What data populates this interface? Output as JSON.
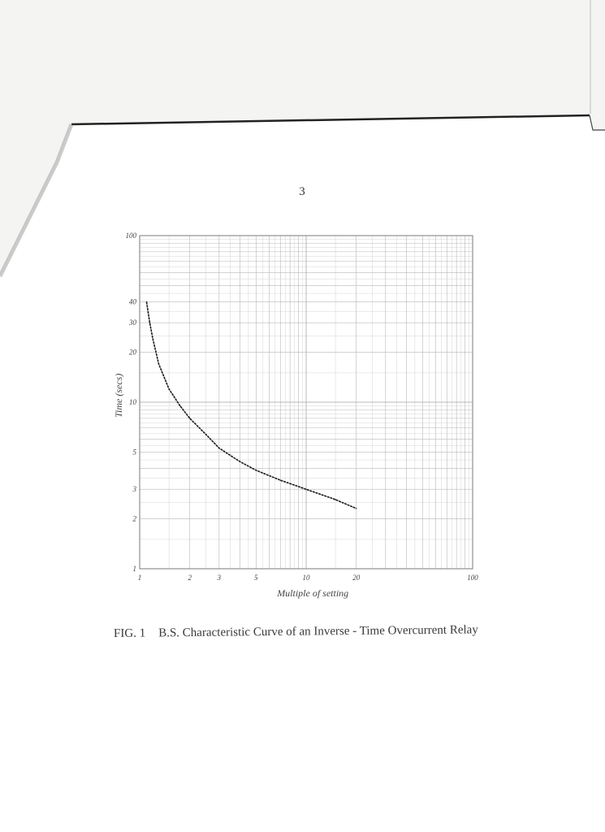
{
  "page": {
    "number": "3"
  },
  "caption": {
    "label": "FIG. 1",
    "text": "B.S. Characteristic Curve of an Inverse - Time Overcurrent Relay"
  },
  "colors": {
    "paper": "#ffffff",
    "grid": "#b8b8b8",
    "curve": "#1a1a1a",
    "text": "#444444"
  },
  "chart_data": {
    "type": "line",
    "xlabel": "Multiple of setting",
    "ylabel": "Time (secs)",
    "x_scale": "log",
    "y_scale": "log",
    "xlim": [
      1,
      100
    ],
    "ylim": [
      1,
      100
    ],
    "grid": true,
    "x_ticks": [
      {
        "value": 1,
        "label": "1"
      },
      {
        "value": 2,
        "label": "2"
      },
      {
        "value": 3,
        "label": "3"
      },
      {
        "value": 5,
        "label": "5"
      },
      {
        "value": 10,
        "label": "10"
      },
      {
        "value": 20,
        "label": "20"
      },
      {
        "value": 100,
        "label": "100"
      }
    ],
    "y_ticks": [
      {
        "value": 1,
        "label": "1"
      },
      {
        "value": 2,
        "label": "2"
      },
      {
        "value": 3,
        "label": "3"
      },
      {
        "value": 5,
        "label": "5"
      },
      {
        "value": 10,
        "label": "10"
      },
      {
        "value": 20,
        "label": "20"
      },
      {
        "value": 30,
        "label": "30"
      },
      {
        "value": 40,
        "label": "40"
      },
      {
        "value": 100,
        "label": "100"
      }
    ],
    "series": [
      {
        "x": [
          1.1,
          1.15,
          1.2,
          1.3,
          1.5,
          1.75,
          2,
          2.5,
          3,
          4,
          5,
          7,
          10,
          15,
          20
        ],
        "y": [
          40,
          30,
          24,
          17,
          12,
          9.5,
          8.0,
          6.4,
          5.3,
          4.4,
          3.9,
          3.4,
          3.0,
          2.6,
          2.3
        ]
      }
    ]
  }
}
